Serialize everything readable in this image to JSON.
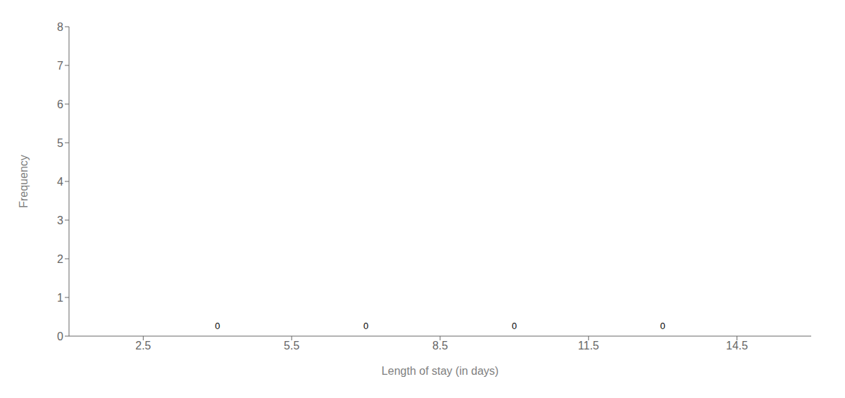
{
  "chart_data": {
    "type": "histogram",
    "xlabel": "Length of stay (in days)",
    "ylabel": "Frequency",
    "bins": [
      2.5,
      5.5,
      8.5,
      11.5,
      14.5
    ],
    "values": [
      0,
      0,
      0,
      0
    ],
    "data_labels": true,
    "xlim": [
      1,
      16
    ],
    "xticks": [
      2.5,
      5.5,
      8.5,
      11.5,
      14.5
    ],
    "ylim": [
      0,
      8
    ],
    "yticks": [
      0,
      1,
      2,
      3,
      4,
      5,
      6,
      7,
      8
    ]
  }
}
